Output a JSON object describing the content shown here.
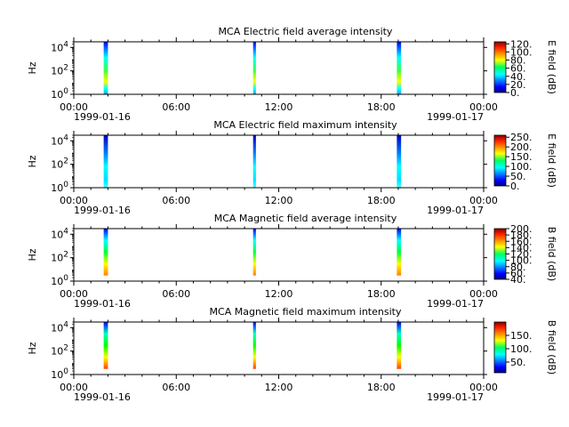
{
  "figure": {
    "x_ticks": [
      "00:00",
      "06:00",
      "12:00",
      "18:00",
      "00:00"
    ],
    "x_dates": [
      "1999-01-16",
      "1999-01-17"
    ]
  },
  "chart_data": [
    {
      "type": "heatmap",
      "title": "MCA  Electric field average intensity",
      "ylabel": "Hz",
      "y_scale": "log",
      "y_tick_labels": [
        "10^0",
        "10^2",
        "10^4"
      ],
      "xlim": [
        "1999-01-16T00:00",
        "1999-01-17T00:00"
      ],
      "ylim": [
        1,
        30000
      ],
      "colorbar": {
        "label": "E field (dB)",
        "range": [
          0,
          125
        ],
        "ticks": [
          0,
          20,
          40,
          60,
          80,
          100,
          120
        ],
        "tick_labels": [
          "0.",
          "20.",
          "40.",
          "60.",
          "80.",
          "100.",
          "120."
        ]
      },
      "passes": [
        {
          "start": "1999-01-16T01:45",
          "end": "1999-01-16T02:00",
          "fmin": 1,
          "fmax": 30000
        },
        {
          "start": "1999-01-16T10:30",
          "end": "1999-01-16T10:40",
          "fmin": 1,
          "fmax": 30000
        },
        {
          "start": "1999-01-16T18:55",
          "end": "1999-01-16T19:10",
          "fmin": 1,
          "fmax": 30000
        }
      ]
    },
    {
      "type": "heatmap",
      "title": "MCA  Electric field maximum intensity",
      "ylabel": "Hz",
      "y_scale": "log",
      "y_tick_labels": [
        "10^0",
        "10^2",
        "10^4"
      ],
      "xlim": [
        "1999-01-16T00:00",
        "1999-01-17T00:00"
      ],
      "ylim": [
        1,
        30000
      ],
      "colorbar": {
        "label": "E field (dB)",
        "range": [
          0,
          260
        ],
        "ticks": [
          0,
          50,
          100,
          150,
          200,
          250
        ],
        "tick_labels": [
          "0.",
          "50.",
          "100.",
          "150.",
          "200.",
          "250."
        ]
      },
      "passes": [
        {
          "start": "1999-01-16T01:45",
          "end": "1999-01-16T02:00",
          "fmin": 1,
          "fmax": 30000
        },
        {
          "start": "1999-01-16T10:30",
          "end": "1999-01-16T10:40",
          "fmin": 1,
          "fmax": 30000
        },
        {
          "start": "1999-01-16T18:55",
          "end": "1999-01-16T19:10",
          "fmin": 1,
          "fmax": 30000
        }
      ]
    },
    {
      "type": "heatmap",
      "title": "MCA  Magnetic field average intensity",
      "ylabel": "Hz",
      "y_scale": "log",
      "y_tick_labels": [
        "10^0",
        "10^2",
        "10^4"
      ],
      "xlim": [
        "1999-01-16T00:00",
        "1999-01-17T00:00"
      ],
      "ylim": [
        1,
        30000
      ],
      "colorbar": {
        "label": "B field (dB)",
        "range": [
          40,
          200
        ],
        "ticks": [
          40,
          60,
          80,
          100,
          120,
          140,
          160,
          180,
          200
        ],
        "tick_labels": [
          "40.",
          "60.",
          "80.",
          "100.",
          "120.",
          "140.",
          "160.",
          "180.",
          "200."
        ]
      },
      "passes": [
        {
          "start": "1999-01-16T01:45",
          "end": "1999-01-16T02:00",
          "fmin": 3,
          "fmax": 30000
        },
        {
          "start": "1999-01-16T10:30",
          "end": "1999-01-16T10:40",
          "fmin": 3,
          "fmax": 30000
        },
        {
          "start": "1999-01-16T18:55",
          "end": "1999-01-16T19:10",
          "fmin": 3,
          "fmax": 30000
        }
      ]
    },
    {
      "type": "heatmap",
      "title": "MCA  Magnetic field maximum intensity",
      "ylabel": "Hz",
      "y_scale": "log",
      "y_tick_labels": [
        "10^0",
        "10^2",
        "10^4"
      ],
      "xlim": [
        "1999-01-16T00:00",
        "1999-01-17T00:00"
      ],
      "ylim": [
        1,
        30000
      ],
      "colorbar": {
        "label": "B field (dB)",
        "range": [
          10,
          200
        ],
        "ticks": [
          50,
          100,
          150
        ],
        "tick_labels": [
          "50.",
          "100.",
          "150."
        ]
      },
      "passes": [
        {
          "start": "1999-01-16T01:45",
          "end": "1999-01-16T02:00",
          "fmin": 3,
          "fmax": 30000
        },
        {
          "start": "1999-01-16T10:30",
          "end": "1999-01-16T10:40",
          "fmin": 3,
          "fmax": 30000
        },
        {
          "start": "1999-01-16T18:55",
          "end": "1999-01-16T19:10",
          "fmin": 3,
          "fmax": 30000
        }
      ]
    }
  ]
}
